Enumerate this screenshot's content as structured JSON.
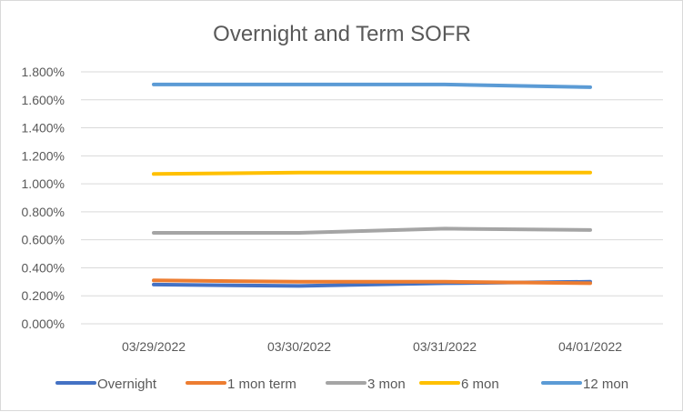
{
  "chart_data": {
    "type": "line",
    "title": "Overnight and Term SOFR",
    "xlabel": "",
    "ylabel": "",
    "categories": [
      "03/29/2022",
      "03/30/2022",
      "03/31/2022",
      "04/01/2022"
    ],
    "ylim": [
      0,
      1.8
    ],
    "yticks": [
      0,
      0.2,
      0.4,
      0.6,
      0.8,
      1.0,
      1.2,
      1.4,
      1.6,
      1.8
    ],
    "ytick_labels": [
      "0.000%",
      "0.200%",
      "0.400%",
      "0.600%",
      "0.800%",
      "1.000%",
      "1.200%",
      "1.400%",
      "1.600%",
      "1.800%"
    ],
    "grid": true,
    "legend_position": "bottom",
    "series": [
      {
        "name": "Overnight",
        "color": "#4472C4",
        "values": [
          0.28,
          0.27,
          0.29,
          0.3
        ]
      },
      {
        "name": "1 mon term",
        "color": "#ED7D31",
        "values": [
          0.31,
          0.3,
          0.3,
          0.29
        ]
      },
      {
        "name": "3 mon",
        "color": "#A5A5A5",
        "values": [
          0.65,
          0.65,
          0.68,
          0.67
        ]
      },
      {
        "name": "6 mon",
        "color": "#FFC000",
        "values": [
          1.07,
          1.08,
          1.08,
          1.08
        ]
      },
      {
        "name": "12 mon",
        "color": "#5B9BD5",
        "values": [
          1.71,
          1.71,
          1.71,
          1.69
        ]
      }
    ]
  }
}
